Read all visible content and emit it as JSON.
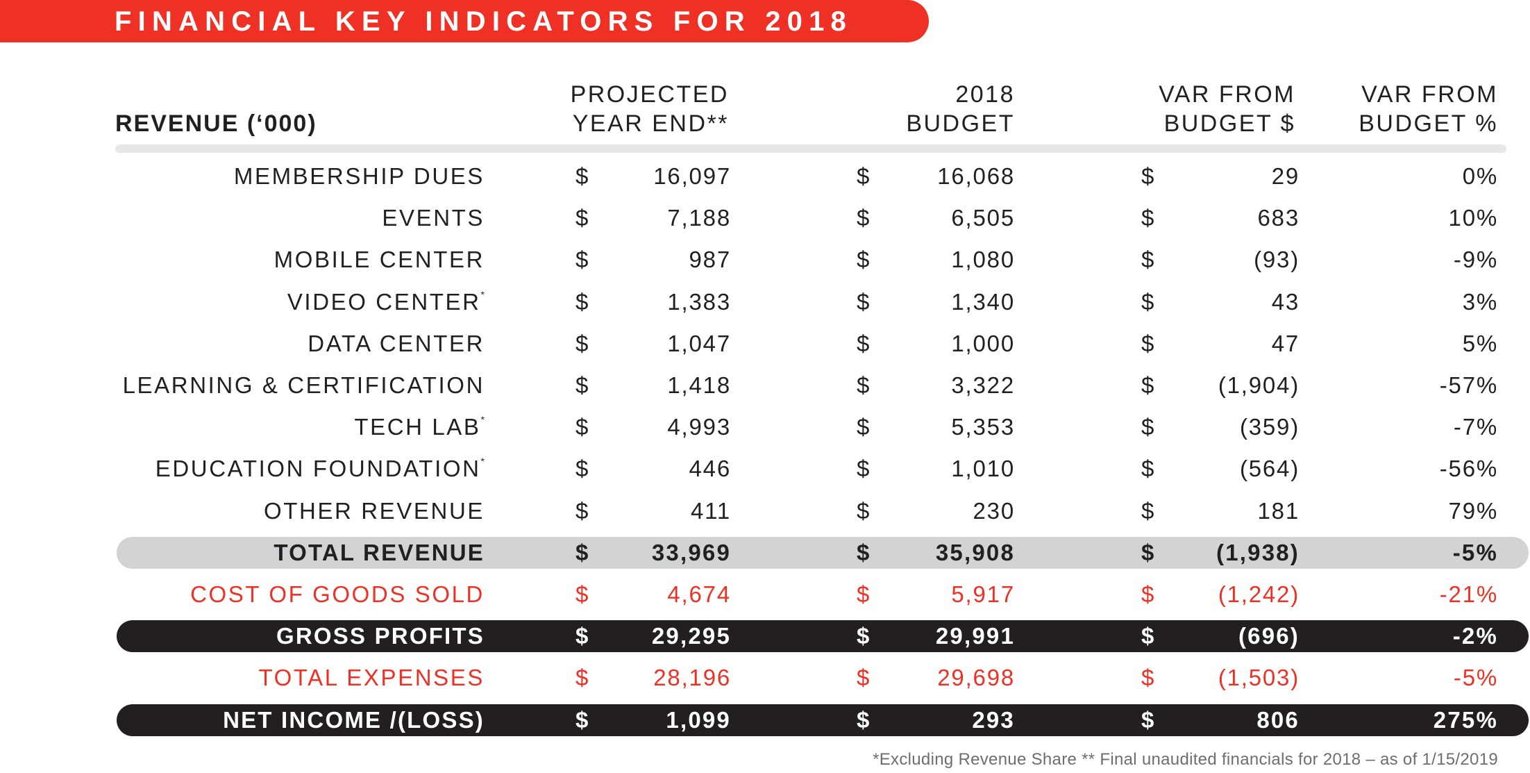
{
  "banner": {
    "title": "FINANCIAL KEY INDICATORS FOR 2018"
  },
  "colors": {
    "accent_red": "#EE3124",
    "dark": "#231F20",
    "total_bar": "#D1D3D4",
    "divider": "#E6E7E8",
    "footnote": "#6D6E71"
  },
  "header": {
    "revenue_label": "REVENUE (‘000)",
    "columns": [
      {
        "line1": "PROJECTED",
        "line2": "YEAR END**"
      },
      {
        "line1": "2018",
        "line2": "BUDGET"
      },
      {
        "line1": "VAR FROM",
        "line2": "BUDGET $"
      },
      {
        "line1": "VAR FROM",
        "line2": "BUDGET %"
      }
    ]
  },
  "rows": [
    {
      "label": "MEMBERSHIP DUES",
      "mark": "",
      "style": "normal",
      "cur": "$",
      "projected": "16,097",
      "budget": "16,068",
      "var_amt": "29",
      "var_pct": "0%"
    },
    {
      "label": "EVENTS",
      "mark": "",
      "style": "normal",
      "cur": "$",
      "projected": "7,188",
      "budget": "6,505",
      "var_amt": "683",
      "var_pct": "10%"
    },
    {
      "label": "MOBILE CENTER",
      "mark": "",
      "style": "normal",
      "cur": "$",
      "projected": "987",
      "budget": "1,080",
      "var_amt": "(93)",
      "var_pct": "-9%"
    },
    {
      "label": "VIDEO CENTER",
      "mark": "*",
      "style": "normal",
      "cur": "$",
      "projected": "1,383",
      "budget": "1,340",
      "var_amt": "43",
      "var_pct": "3%"
    },
    {
      "label": "DATA CENTER",
      "mark": "",
      "style": "normal",
      "cur": "$",
      "projected": "1,047",
      "budget": "1,000",
      "var_amt": "47",
      "var_pct": "5%"
    },
    {
      "label": "LEARNING & CERTIFICATION",
      "mark": "",
      "style": "normal",
      "cur": "$",
      "projected": "1,418",
      "budget": "3,322",
      "var_amt": "(1,904)",
      "var_pct": "-57%"
    },
    {
      "label": "TECH LAB",
      "mark": "*",
      "style": "normal",
      "cur": "$",
      "projected": "4,993",
      "budget": "5,353",
      "var_amt": "(359)",
      "var_pct": "-7%"
    },
    {
      "label": "EDUCATION FOUNDATION",
      "mark": "*",
      "style": "normal",
      "cur": "$",
      "projected": "446",
      "budget": "1,010",
      "var_amt": "(564)",
      "var_pct": "-56%"
    },
    {
      "label": "OTHER REVENUE",
      "mark": "",
      "style": "normal",
      "cur": "$",
      "projected": "411",
      "budget": "230",
      "var_amt": "181",
      "var_pct": "79%"
    },
    {
      "label": "TOTAL REVENUE",
      "mark": "",
      "style": "bold-gray",
      "cur": "$",
      "projected": "33,969",
      "budget": "35,908",
      "var_amt": "(1,938)",
      "var_pct": "-5%"
    },
    {
      "label": "COST OF GOODS SOLD",
      "mark": "",
      "style": "red",
      "cur": "$",
      "projected": "4,674",
      "budget": "5,917",
      "var_amt": "(1,242)",
      "var_pct": "-21%"
    },
    {
      "label": "GROSS PROFITS",
      "mark": "",
      "style": "bold-black",
      "cur": "$",
      "projected": "29,295",
      "budget": "29,991",
      "var_amt": "(696)",
      "var_pct": "-2%"
    },
    {
      "label": "TOTAL EXPENSES",
      "mark": "",
      "style": "red",
      "cur": "$",
      "projected": "28,196",
      "budget": "29,698",
      "var_amt": "(1,503)",
      "var_pct": "-5%"
    },
    {
      "label": "NET INCOME /(LOSS)",
      "mark": "",
      "style": "bold-black",
      "cur": "$",
      "projected": "1,099",
      "budget": "293",
      "var_amt": "806",
      "var_pct": "275%"
    }
  ],
  "footnote": "*Excluding Revenue Share  ** Final unaudited financials for 2018 – as of 1/15/2019"
}
